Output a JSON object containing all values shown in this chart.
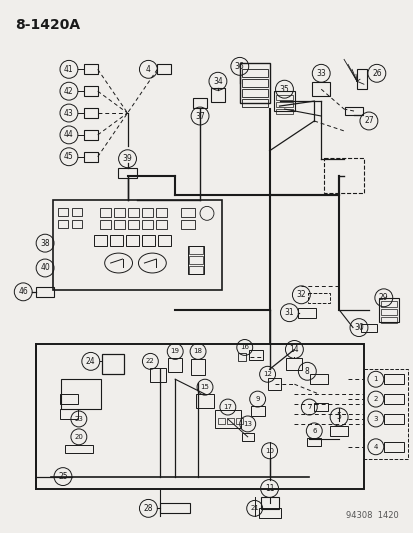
{
  "title": "8-1420A",
  "footer": "94308  1420",
  "bg_color": "#f0eeeb",
  "line_color": "#1a1a1a",
  "fig_width": 4.14,
  "fig_height": 5.33,
  "dpi": 100
}
